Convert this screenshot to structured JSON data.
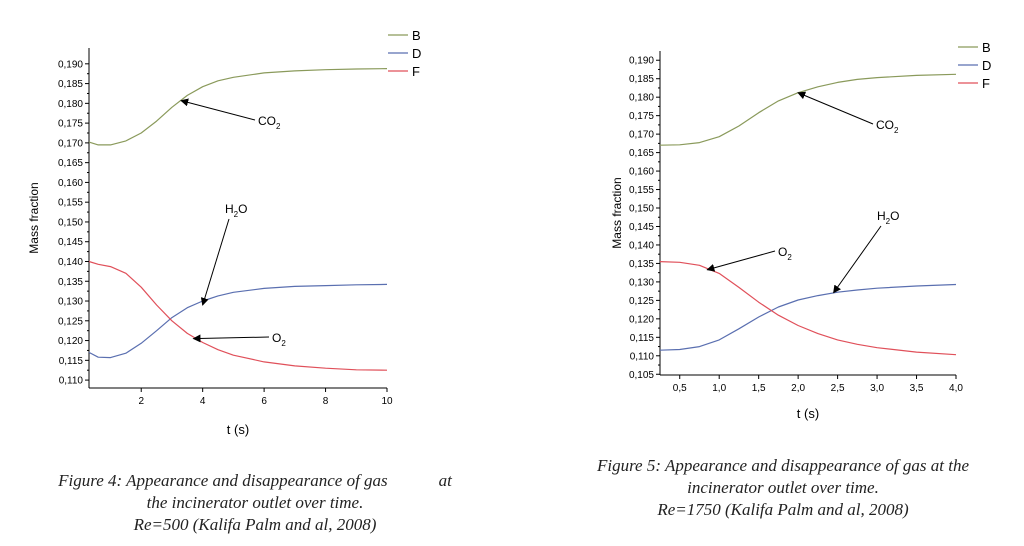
{
  "figures": [
    {
      "caption_lines": [
        "Figure 4: Appearance and disappearance of gas            at",
        "the incinerator outlet over time.",
        "Re=500 (Kalifa Palm and al, 2008)"
      ]
    },
    {
      "caption_lines": [
        "Figure 5: Appearance and disappearance of gas at the",
        "incinerator outlet over time.",
        "Re=1750 (Kalifa Palm and al, 2008)"
      ]
    }
  ],
  "chart_data": [
    {
      "type": "line",
      "title": "",
      "xlabel": "t (s)",
      "ylabel": "Mass fraction",
      "xlim": [
        0.3,
        10
      ],
      "ylim": [
        0.108,
        0.194
      ],
      "xticks": [
        2,
        4,
        6,
        8,
        10
      ],
      "xtick_labels": [
        "2",
        "4",
        "6",
        "8",
        "10"
      ],
      "yticks": [
        0.11,
        0.115,
        0.12,
        0.125,
        0.13,
        0.135,
        0.14,
        0.145,
        0.15,
        0.155,
        0.16,
        0.165,
        0.17,
        0.175,
        0.18,
        0.185,
        0.19
      ],
      "ytick_labels": [
        "0,110",
        "0,115",
        "0,120",
        "0,125",
        "0,130",
        "0,135",
        "0,140",
        "0,145",
        "0,150",
        "0,155",
        "0,160",
        "0,165",
        "0,170",
        "0,175",
        "0,180",
        "0,185",
        "0,190"
      ],
      "grid": false,
      "legend": "top-right outside",
      "series": [
        {
          "name": "B",
          "color": "#8a9a5b",
          "x": [
            0.3,
            0.6,
            1.0,
            1.5,
            2.0,
            2.5,
            3.0,
            3.5,
            4.0,
            4.5,
            5.0,
            6.0,
            7.0,
            8.0,
            9.0,
            10.0
          ],
          "y": [
            0.1702,
            0.1695,
            0.1695,
            0.1705,
            0.1725,
            0.1755,
            0.179,
            0.182,
            0.1842,
            0.1857,
            0.1866,
            0.1877,
            0.1882,
            0.1885,
            0.1887,
            0.1888
          ]
        },
        {
          "name": "D",
          "color": "#5a6fb0",
          "x": [
            0.3,
            0.6,
            1.0,
            1.5,
            2.0,
            2.5,
            3.0,
            3.5,
            4.0,
            4.5,
            5.0,
            6.0,
            7.0,
            8.0,
            9.0,
            10.0
          ],
          "y": [
            0.117,
            0.1158,
            0.1157,
            0.1168,
            0.1193,
            0.1225,
            0.1258,
            0.1283,
            0.13,
            0.1313,
            0.1322,
            0.1332,
            0.1337,
            0.1339,
            0.1341,
            0.1342
          ]
        },
        {
          "name": "F",
          "color": "#e0505a",
          "x": [
            0.3,
            0.6,
            1.0,
            1.5,
            2.0,
            2.5,
            3.0,
            3.5,
            4.0,
            4.5,
            5.0,
            6.0,
            7.0,
            8.0,
            9.0,
            10.0
          ],
          "y": [
            0.14,
            0.1393,
            0.1387,
            0.137,
            0.1335,
            0.129,
            0.125,
            0.1218,
            0.1195,
            0.1177,
            0.1163,
            0.1146,
            0.1136,
            0.113,
            0.1126,
            0.1125
          ]
        }
      ],
      "annotations": [
        {
          "base": "CO",
          "sub": "2",
          "x": 3.3,
          "y": 0.1807
        },
        {
          "base": "H",
          "sub": "2",
          "after": "O",
          "x": 4.0,
          "y": 0.129
        },
        {
          "base": "O",
          "sub": "2",
          "x": 3.7,
          "y": 0.1205
        }
      ]
    },
    {
      "type": "line",
      "title": "",
      "xlabel": "t (s)",
      "ylabel": "Mass fraction",
      "xlim": [
        0.25,
        4.0
      ],
      "ylim": [
        0.1048,
        0.1925
      ],
      "xticks": [
        0.5,
        1.0,
        1.5,
        2.0,
        2.5,
        3.0,
        3.5,
        4.0
      ],
      "xtick_labels": [
        "0,5",
        "1,0",
        "1,5",
        "2,0",
        "2,5",
        "3,0",
        "3,5",
        "4,0"
      ],
      "yticks": [
        0.105,
        0.11,
        0.115,
        0.12,
        0.125,
        0.13,
        0.135,
        0.14,
        0.145,
        0.15,
        0.155,
        0.16,
        0.165,
        0.17,
        0.175,
        0.18,
        0.185,
        0.19
      ],
      "ytick_labels": [
        "0,105",
        "0,110",
        "0,115",
        "0,120",
        "0,125",
        "0,130",
        "0,135",
        "0,140",
        "0,145",
        "0,150",
        "0,155",
        "0,160",
        "0,165",
        "0,170",
        "0,175",
        "0,180",
        "0,185",
        "0,190"
      ],
      "grid": false,
      "legend": "top-right outside",
      "series": [
        {
          "name": "B",
          "color": "#8a9a5b",
          "x": [
            0.25,
            0.5,
            0.75,
            1.0,
            1.25,
            1.5,
            1.75,
            2.0,
            2.25,
            2.5,
            2.75,
            3.0,
            3.5,
            4.0
          ],
          "y": [
            0.167,
            0.1671,
            0.1677,
            0.1693,
            0.1722,
            0.1758,
            0.179,
            0.1812,
            0.1828,
            0.184,
            0.1848,
            0.1853,
            0.1859,
            0.1862
          ]
        },
        {
          "name": "D",
          "color": "#5a6fb0",
          "x": [
            0.25,
            0.5,
            0.75,
            1.0,
            1.25,
            1.5,
            1.75,
            2.0,
            2.25,
            2.5,
            2.75,
            3.0,
            3.5,
            4.0
          ],
          "y": [
            0.1115,
            0.1117,
            0.1125,
            0.1143,
            0.1173,
            0.1205,
            0.1232,
            0.1251,
            0.1263,
            0.1272,
            0.1278,
            0.1283,
            0.1289,
            0.1293
          ]
        },
        {
          "name": "F",
          "color": "#e0505a",
          "x": [
            0.25,
            0.5,
            0.75,
            1.0,
            1.25,
            1.5,
            1.75,
            2.0,
            2.25,
            2.5,
            2.75,
            3.0,
            3.5,
            4.0
          ],
          "y": [
            0.1355,
            0.1353,
            0.1345,
            0.1323,
            0.1285,
            0.1245,
            0.121,
            0.1182,
            0.116,
            0.1143,
            0.1131,
            0.1122,
            0.111,
            0.1103
          ]
        }
      ],
      "annotations": [
        {
          "base": "CO",
          "sub": "2",
          "x": 2.0,
          "y": 0.1812
        },
        {
          "base": "H",
          "sub": "2",
          "after": "O",
          "x": 2.45,
          "y": 0.1271
        },
        {
          "base": "O",
          "sub": "2",
          "x": 0.85,
          "y": 0.1333
        }
      ]
    }
  ]
}
